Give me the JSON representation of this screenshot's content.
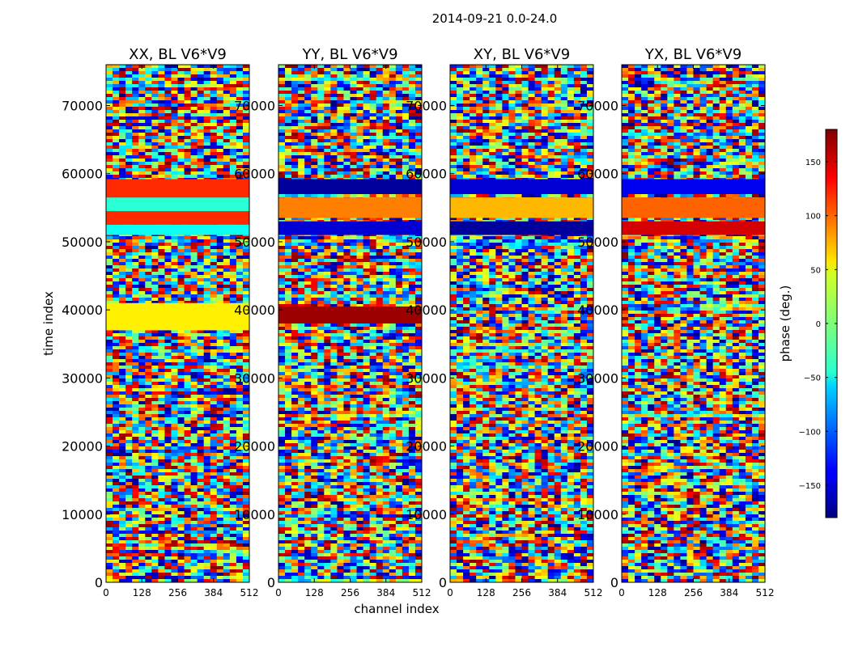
{
  "chart_data": {
    "type": "heatmap",
    "suptitle": "2014-09-21 0.0-24.0",
    "xlabel": "channel index",
    "ylabel": "time index",
    "xlim": [
      0,
      512
    ],
    "ylim": [
      0,
      76000
    ],
    "xticks": [
      0,
      128,
      256,
      384,
      512
    ],
    "yticks": [
      0,
      10000,
      20000,
      30000,
      40000,
      50000,
      60000,
      70000
    ],
    "colormap": "jet",
    "colorbar": {
      "label": "phase (deg.)",
      "range": [
        -180,
        180
      ],
      "ticks": [
        150,
        100,
        50,
        0,
        -50,
        -100,
        -150
      ],
      "tick_labels": [
        "150",
        "100",
        "50",
        "0",
        "−50",
        "−100",
        "−150"
      ]
    },
    "panels": [
      {
        "title": "XX, BL V6*V9",
        "bands": [
          {
            "t0": 52500,
            "t1": 59200,
            "kind": "smooth",
            "v": 120
          },
          {
            "t0": 54500,
            "t1": 56500,
            "kind": "smooth",
            "v": -30
          },
          {
            "t0": 51000,
            "t1": 52500,
            "kind": "smooth",
            "v": -40
          },
          {
            "t0": 37000,
            "t1": 41000,
            "kind": "smooth",
            "v": 50
          }
        ]
      },
      {
        "title": "YY, BL V6*V9",
        "bands": [
          {
            "t0": 57000,
            "t1": 59200,
            "kind": "smooth",
            "v": -170
          },
          {
            "t0": 53500,
            "t1": 56500,
            "kind": "smooth",
            "v": 90
          },
          {
            "t0": 51000,
            "t1": 53000,
            "kind": "smooth",
            "v": -150
          },
          {
            "t0": 38000,
            "t1": 40500,
            "kind": "smooth",
            "v": 170
          }
        ]
      },
      {
        "title": "XY, BL V6*V9",
        "bands": [
          {
            "t0": 57000,
            "t1": 59200,
            "kind": "smooth",
            "v": -150
          },
          {
            "t0": 53500,
            "t1": 56500,
            "kind": "smooth",
            "v": 70
          },
          {
            "t0": 51000,
            "t1": 53000,
            "kind": "smooth",
            "v": -170
          }
        ]
      },
      {
        "title": "YX, BL V6*V9",
        "bands": [
          {
            "t0": 57000,
            "t1": 59200,
            "kind": "smooth",
            "v": -140
          },
          {
            "t0": 53500,
            "t1": 56500,
            "kind": "smooth",
            "v": 100
          },
          {
            "t0": 51000,
            "t1": 53000,
            "kind": "smooth",
            "v": 150
          }
        ]
      }
    ]
  }
}
